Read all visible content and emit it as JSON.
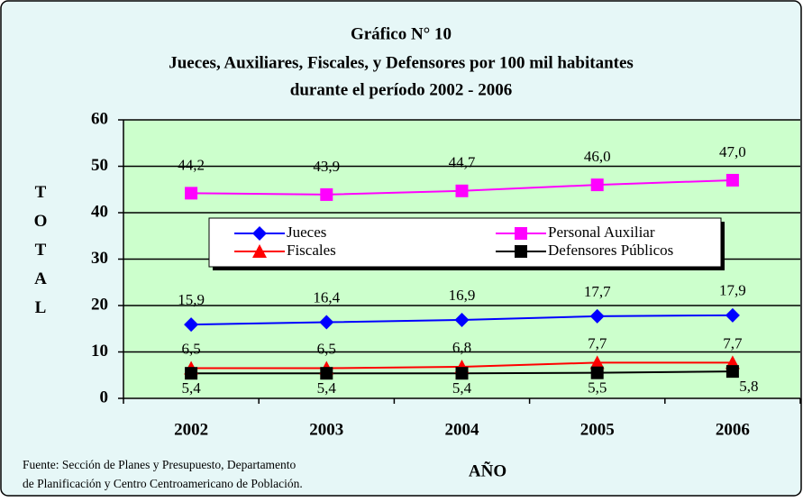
{
  "chart_data": {
    "type": "line",
    "title": "Gráfico N° 10",
    "subtitle": [
      "Jueces, Auxiliares, Fiscales, y Defensores por 100 mil habitantes",
      "durante el período 2002 - 2006"
    ],
    "y_label": "TOTAL",
    "x_label": "AÑO",
    "source": [
      "Fuente: Sección de Planes y Presupuesto, Departamento",
      "de Planificación  y Centro Centroamericano de Población."
    ],
    "categories": [
      "2002",
      "2003",
      "2004",
      "2005",
      "2006"
    ],
    "series": [
      {
        "name": "Jueces",
        "color": "#0000ff",
        "marker": "diamond",
        "values": [
          15.9,
          16.4,
          16.9,
          17.7,
          17.9
        ],
        "value_labels": [
          "15,9",
          "16,4",
          "16,9",
          "17,7",
          "17,9"
        ]
      },
      {
        "name": "Personal Auxiliar",
        "color": "#ff00ff",
        "marker": "square",
        "values": [
          44.2,
          43.9,
          44.7,
          46.0,
          47.0
        ],
        "value_labels": [
          "44,2",
          "43,9",
          "44,7",
          "46,0",
          "47,0"
        ]
      },
      {
        "name": "Fiscales",
        "color": "#ff0000",
        "marker": "triangle",
        "values": [
          6.5,
          6.5,
          6.8,
          7.7,
          7.7
        ],
        "value_labels": [
          "6,5",
          "6,5",
          "6,8",
          "7,7",
          "7,7"
        ]
      },
      {
        "name": "Defensores Públicos",
        "color": "#000000",
        "marker": "square",
        "values": [
          5.4,
          5.4,
          5.4,
          5.5,
          5.8
        ],
        "value_labels": [
          "5,4",
          "5,4",
          "5,4",
          "5,5",
          "5,8"
        ]
      }
    ],
    "ylim": [
      0,
      60
    ],
    "yticks": [
      0,
      10,
      20,
      30,
      40,
      50,
      60
    ],
    "grid": true
  }
}
